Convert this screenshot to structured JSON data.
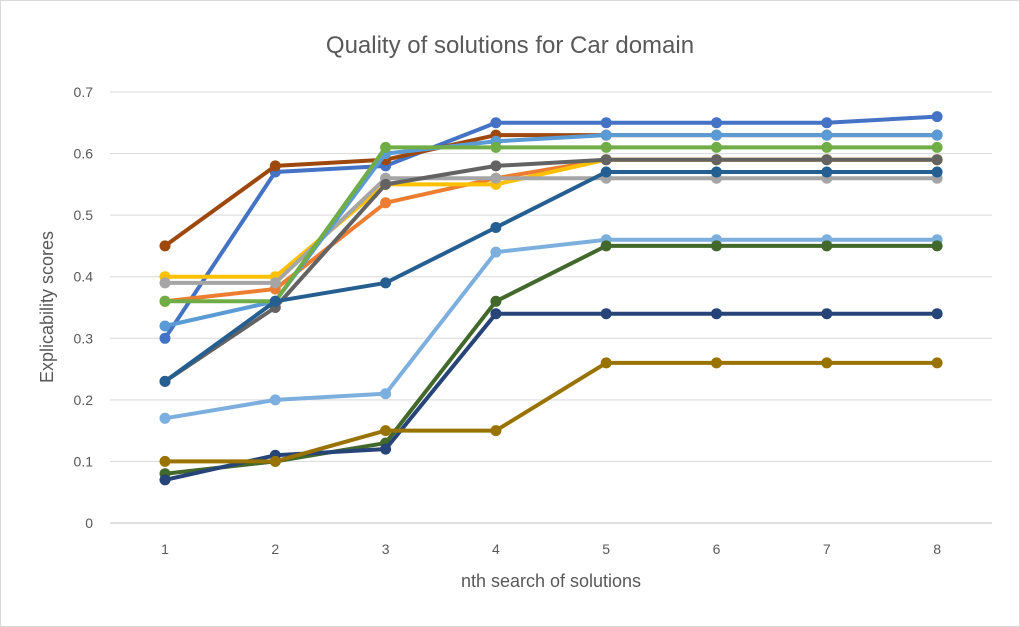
{
  "chart_data": {
    "type": "line",
    "title": "Quality of solutions for Car domain",
    "xlabel": "nth search of solutions",
    "ylabel": "Explicability scores",
    "x": [
      1,
      2,
      3,
      4,
      5,
      6,
      7,
      8
    ],
    "ylim": [
      0,
      0.7
    ],
    "yticks": [
      "0",
      "0.1",
      "0.2",
      "0.3",
      "0.4",
      "0.5",
      "0.6",
      "0.7"
    ],
    "grid": true,
    "legend": "none",
    "series": [
      {
        "color": "#4472C4",
        "values": [
          0.3,
          0.57,
          0.58,
          0.65,
          0.65,
          0.65,
          0.65,
          0.66
        ]
      },
      {
        "color": "#9E480E",
        "values": [
          0.45,
          0.58,
          0.59,
          0.63,
          0.63,
          0.63,
          0.63,
          0.63
        ]
      },
      {
        "color": "#ED7D31",
        "values": [
          0.36,
          0.38,
          0.52,
          0.56,
          0.59,
          0.59,
          0.59,
          0.59
        ]
      },
      {
        "color": "#FFC000",
        "values": [
          0.4,
          0.4,
          0.55,
          0.55,
          0.59,
          0.59,
          0.59,
          0.59
        ]
      },
      {
        "color": "#A5A5A5",
        "values": [
          0.39,
          0.39,
          0.56,
          0.56,
          0.56,
          0.56,
          0.56,
          0.56
        ]
      },
      {
        "color": "#5B9BD5",
        "values": [
          0.32,
          0.36,
          0.6,
          0.62,
          0.63,
          0.63,
          0.63,
          0.63
        ]
      },
      {
        "color": "#70AD47",
        "values": [
          0.36,
          0.36,
          0.61,
          0.61,
          0.61,
          0.61,
          0.61,
          0.61
        ]
      },
      {
        "color": "#636363",
        "values": [
          0.23,
          0.35,
          0.55,
          0.58,
          0.59,
          0.59,
          0.59,
          0.59
        ]
      },
      {
        "color": "#255E91",
        "values": [
          0.23,
          0.36,
          0.39,
          0.48,
          0.57,
          0.57,
          0.57,
          0.57
        ]
      },
      {
        "color": "#7CAFDD",
        "values": [
          0.17,
          0.2,
          0.21,
          0.44,
          0.46,
          0.46,
          0.46,
          0.46
        ]
      },
      {
        "color": "#43682B",
        "values": [
          0.08,
          0.1,
          0.13,
          0.36,
          0.45,
          0.45,
          0.45,
          0.45
        ]
      },
      {
        "color": "#264478",
        "values": [
          0.07,
          0.11,
          0.12,
          0.34,
          0.34,
          0.34,
          0.34,
          0.34
        ]
      },
      {
        "color": "#997300",
        "values": [
          0.1,
          0.1,
          0.15,
          0.15,
          0.26,
          0.26,
          0.26,
          0.26
        ]
      }
    ]
  }
}
